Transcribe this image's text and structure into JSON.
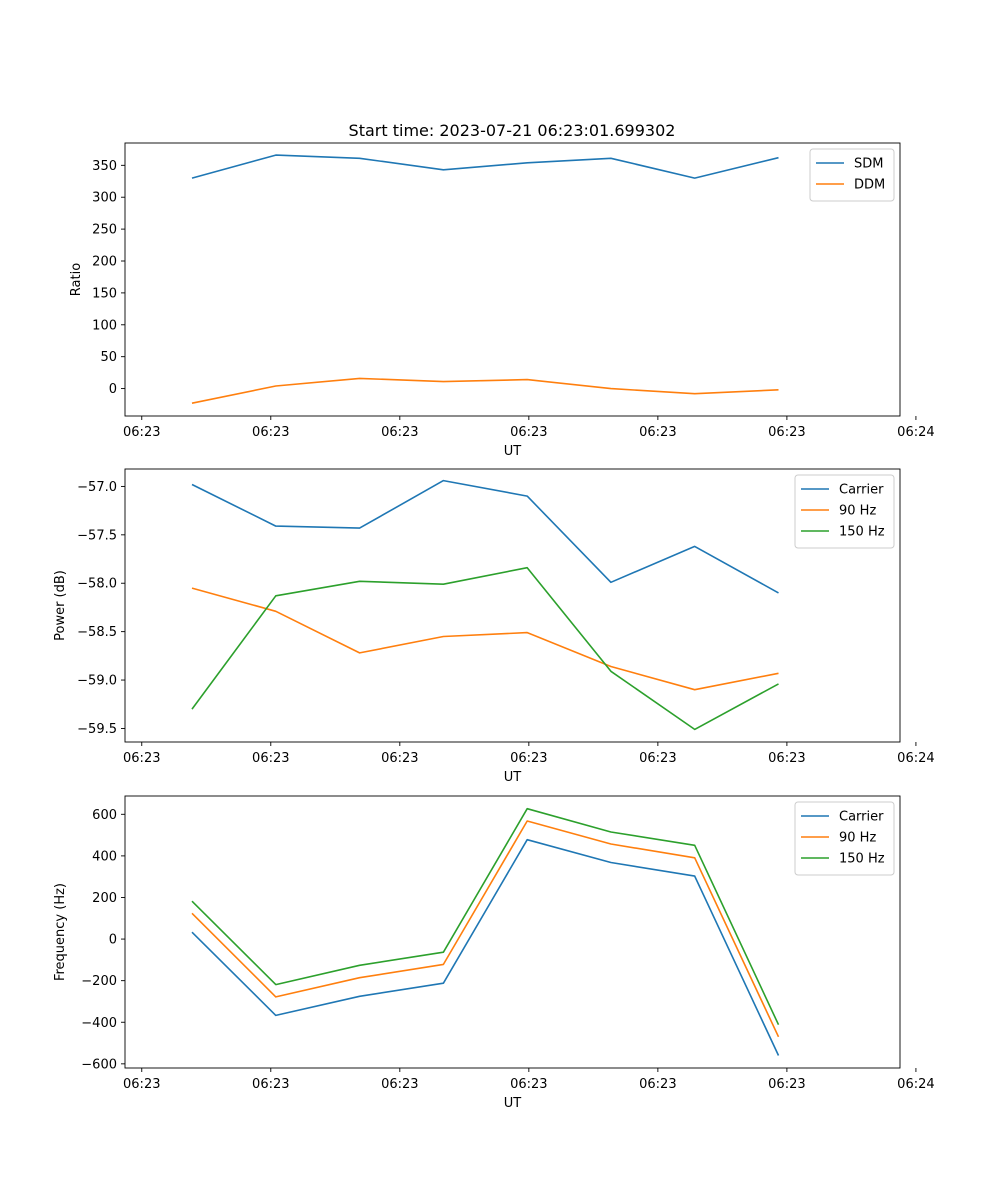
{
  "figure": {
    "title": "Start time: 2023-07-21 06:23:01.699302"
  },
  "chart_data": [
    {
      "type": "line",
      "xlabel": "UT",
      "ylabel": "Ratio",
      "x": [
        1,
        2,
        3,
        4,
        5,
        6,
        7,
        8
      ],
      "xlim": [
        0.2,
        9.45
      ],
      "ylim": [
        -43,
        385
      ],
      "yticks": [
        0,
        50,
        100,
        150,
        200,
        250,
        300,
        350
      ],
      "ytick_labels": [
        "0",
        "50",
        "100",
        "150",
        "200",
        "250",
        "300",
        "350"
      ],
      "xticks": [
        0.4,
        1.94,
        3.48,
        5.02,
        6.56,
        8.1,
        9.64
      ],
      "xtick_labels": [
        "06:23",
        "06:23",
        "06:23",
        "06:23",
        "06:23",
        "06:23",
        "06:24"
      ],
      "legend": "top-right",
      "grid": false,
      "series": [
        {
          "name": "SDM",
          "color": "#1f77b4",
          "values": [
            330,
            366,
            361,
            343,
            354,
            361,
            330,
            362
          ]
        },
        {
          "name": "DDM",
          "color": "#ff7f0e",
          "values": [
            -23,
            4,
            16,
            11,
            14,
            0,
            -8,
            -2
          ]
        }
      ]
    },
    {
      "type": "line",
      "xlabel": "UT",
      "ylabel": "Power (dB)",
      "x": [
        1,
        2,
        3,
        4,
        5,
        6,
        7,
        8
      ],
      "xlim": [
        0.2,
        9.45
      ],
      "ylim": [
        -59.64,
        -56.82
      ],
      "yticks": [
        -57.0,
        -57.5,
        -58.0,
        -58.5,
        -59.0,
        -59.5
      ],
      "ytick_labels": [
        "−57.0",
        "−57.5",
        "−58.0",
        "−58.5",
        "−59.0",
        "−59.5"
      ],
      "xticks": [
        0.4,
        1.94,
        3.48,
        5.02,
        6.56,
        8.1,
        9.64
      ],
      "xtick_labels": [
        "06:23",
        "06:23",
        "06:23",
        "06:23",
        "06:23",
        "06:23",
        "06:24"
      ],
      "legend": "top-right",
      "grid": false,
      "series": [
        {
          "name": "Carrier",
          "color": "#1f77b4",
          "values": [
            -56.98,
            -57.41,
            -57.43,
            -56.94,
            -57.1,
            -57.99,
            -57.62,
            -58.1
          ]
        },
        {
          "name": "90 Hz",
          "color": "#ff7f0e",
          "values": [
            -58.05,
            -58.29,
            -58.72,
            -58.55,
            -58.51,
            -58.86,
            -59.1,
            -58.93
          ]
        },
        {
          "name": "150 Hz",
          "color": "#2ca02c",
          "values": [
            -59.3,
            -58.13,
            -57.98,
            -58.01,
            -57.84,
            -58.91,
            -59.51,
            -59.04
          ]
        }
      ]
    },
    {
      "type": "line",
      "xlabel": "UT",
      "ylabel": "Frequency (Hz)",
      "x": [
        1,
        2,
        3,
        4,
        5,
        6,
        7,
        8
      ],
      "xlim": [
        0.2,
        9.45
      ],
      "ylim": [
        -620,
        688
      ],
      "yticks": [
        600,
        400,
        200,
        0,
        -200,
        -400,
        -600
      ],
      "ytick_labels": [
        "600",
        "400",
        "200",
        "0",
        "−200",
        "−400",
        "−600"
      ],
      "xticks": [
        0.4,
        1.94,
        3.48,
        5.02,
        6.56,
        8.1,
        9.64
      ],
      "xtick_labels": [
        "06:23",
        "06:23",
        "06:23",
        "06:23",
        "06:23",
        "06:23",
        "06:24"
      ],
      "legend": "top-right",
      "grid": false,
      "series": [
        {
          "name": "Carrier",
          "color": "#1f77b4",
          "values": [
            33,
            -367,
            -275,
            -212,
            478,
            368,
            303,
            -560
          ]
        },
        {
          "name": "90 Hz",
          "color": "#ff7f0e",
          "values": [
            124,
            -278,
            -186,
            -122,
            568,
            457,
            391,
            -470
          ]
        },
        {
          "name": "150 Hz",
          "color": "#2ca02c",
          "values": [
            182,
            -219,
            -126,
            -63,
            627,
            515,
            451,
            -412
          ]
        }
      ]
    }
  ]
}
